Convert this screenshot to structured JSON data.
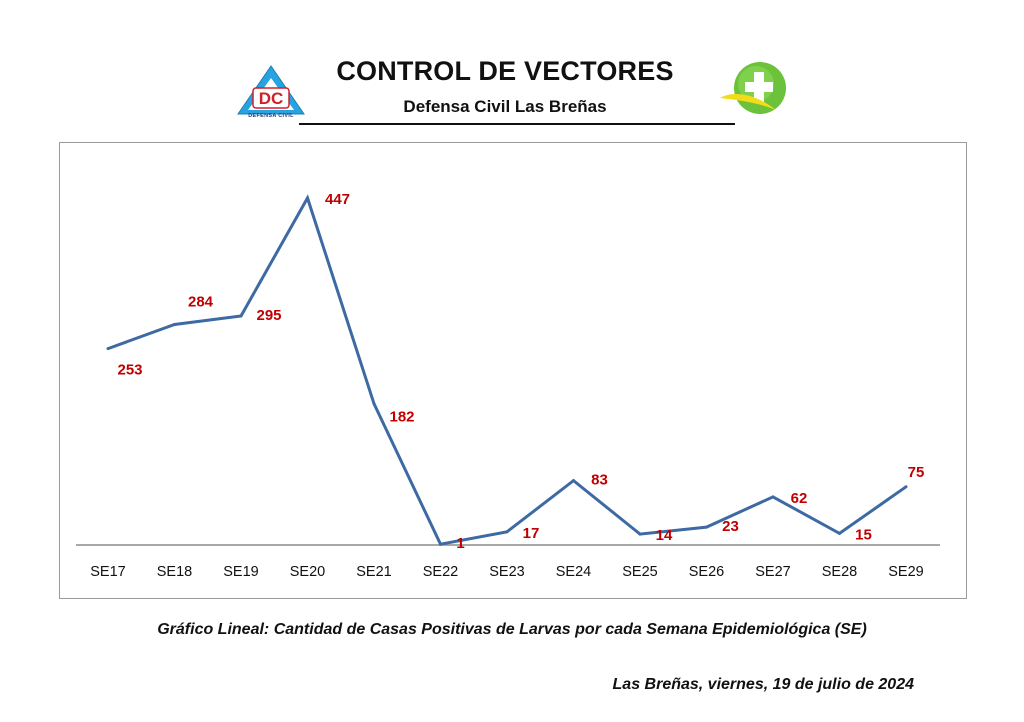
{
  "header": {
    "title": "CONTROL DE VECTORES",
    "subtitle": "Defensa Civil Las Breñas",
    "logo_left": {
      "icon": "defensa-civil-triangle-icon",
      "text": "DC",
      "caption": "DEFENSA CIVIL",
      "colors": {
        "triangle": "#29a3e0",
        "text": "#d0202a"
      }
    },
    "logo_right": {
      "icon": "green-cross-circle-icon",
      "colors": {
        "circle": "#6cc23a",
        "swoosh": "#f2dc1a"
      }
    }
  },
  "chart_data": {
    "type": "line",
    "categories": [
      "SE17",
      "SE18",
      "SE19",
      "SE20",
      "SE21",
      "SE22",
      "SE23",
      "SE24",
      "SE25",
      "SE26",
      "SE27",
      "SE28",
      "SE29"
    ],
    "series": [
      {
        "values": [
          253,
          284,
          295,
          447,
          182,
          1,
          17,
          83,
          14,
          23,
          62,
          15,
          75
        ],
        "color": "#3d6aa3"
      }
    ],
    "data_labels": [
      "253",
      "284",
      "295",
      "447",
      "182",
      "1",
      "17",
      "83",
      "14",
      "23",
      "62",
      "15",
      "75"
    ],
    "data_label_color": "#c00000",
    "ylim": [
      0,
      500
    ],
    "grid": false,
    "legend": "none"
  },
  "caption": "Gráfico Lineal: Cantidad de Casas Positivas de Larvas por cada Semana Epidemiológica (SE)",
  "dateline": "Las Breñas,  viernes, 19 de julio de 2024"
}
